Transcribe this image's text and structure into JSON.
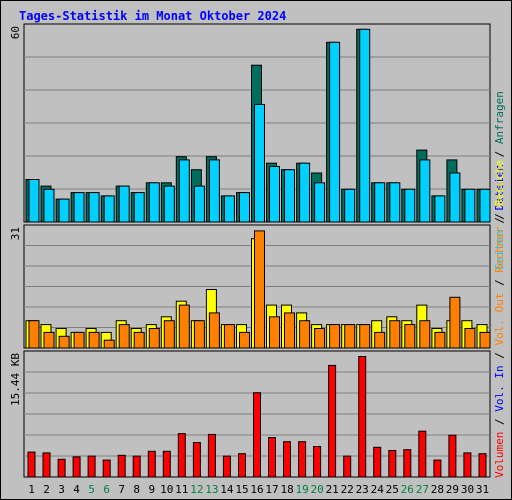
{
  "title": "Tages-Statistik im Monat Oktober 2024",
  "colors": {
    "title": "#0000ff",
    "anfragen": "#006e5e",
    "dateien": "#0000ff",
    "seiten": "#00d0ff",
    "besuche": "#ffff00",
    "rechner": "#ff8000",
    "vol_out": "#ff8000",
    "vol_in": "#0000ff",
    "volumen": "#ff0000",
    "weekend": "#008040",
    "weekday": "#000000"
  },
  "chart_data": [
    {
      "type": "bar",
      "title": "Tages-Statistik im Monat Oktober 2024",
      "y_max_label": "60",
      "ylim": [
        0,
        60
      ],
      "categories": [
        "1",
        "2",
        "3",
        "4",
        "5",
        "6",
        "7",
        "8",
        "9",
        "10",
        "11",
        "12",
        "13",
        "14",
        "15",
        "16",
        "17",
        "18",
        "19",
        "20",
        "21",
        "22",
        "23",
        "24",
        "25",
        "26",
        "27",
        "28",
        "29",
        "30",
        "31"
      ],
      "weekend_days": [
        "5",
        "6",
        "12",
        "13",
        "19",
        "20",
        "26",
        "27"
      ],
      "legend": [
        "Anfragen",
        "Dateien",
        "Seiten"
      ],
      "series": [
        {
          "name": "Anfragen",
          "values": [
            13,
            11,
            7,
            9,
            9,
            8,
            11,
            9,
            12,
            12,
            20,
            16,
            20,
            8,
            9,
            48,
            18,
            16,
            18,
            15,
            55,
            10,
            59,
            12,
            12,
            10,
            22,
            8,
            19,
            10,
            10
          ]
        },
        {
          "name": "Seiten",
          "values": [
            13,
            10,
            7,
            9,
            9,
            8,
            11,
            9,
            12,
            11,
            19,
            11,
            19,
            8,
            9,
            36,
            17,
            16,
            18,
            12,
            55,
            10,
            59,
            12,
            12,
            10,
            19,
            8,
            15,
            10,
            10
          ]
        }
      ]
    },
    {
      "type": "bar",
      "y_max_label": "31",
      "ylim": [
        0,
        31
      ],
      "legend": [
        "Besuche",
        "Rechner"
      ],
      "series": [
        {
          "name": "Besuche",
          "values": [
            7,
            6,
            5,
            4,
            5,
            4,
            7,
            5,
            6,
            8,
            12,
            7,
            15,
            6,
            6,
            28,
            11,
            11,
            9,
            6,
            6,
            6,
            6,
            7,
            8,
            7,
            11,
            5,
            7,
            7,
            6
          ]
        },
        {
          "name": "Rechner",
          "values": [
            7,
            4,
            3,
            4,
            4,
            2,
            6,
            4,
            5,
            7,
            11,
            7,
            9,
            6,
            4,
            30,
            8,
            9,
            7,
            5,
            6,
            6,
            6,
            4,
            7,
            6,
            7,
            4,
            13,
            5,
            4
          ]
        }
      ]
    },
    {
      "type": "bar",
      "y_max_label": "15.44 KB",
      "ylim": [
        0,
        15.44
      ],
      "legend": [
        "Volumen",
        "Vol. In",
        "Vol. Out"
      ],
      "series": [
        {
          "name": "Volumen",
          "values": [
            3.1,
            3.0,
            2.2,
            2.5,
            2.6,
            2.1,
            2.7,
            2.6,
            3.2,
            3.2,
            5.4,
            4.3,
            5.3,
            2.6,
            2.9,
            10.5,
            4.9,
            4.4,
            4.4,
            3.8,
            13.9,
            2.6,
            15.0,
            3.7,
            3.3,
            3.4,
            5.7,
            2.1,
            5.2,
            3.0,
            2.9
          ]
        }
      ]
    }
  ]
}
